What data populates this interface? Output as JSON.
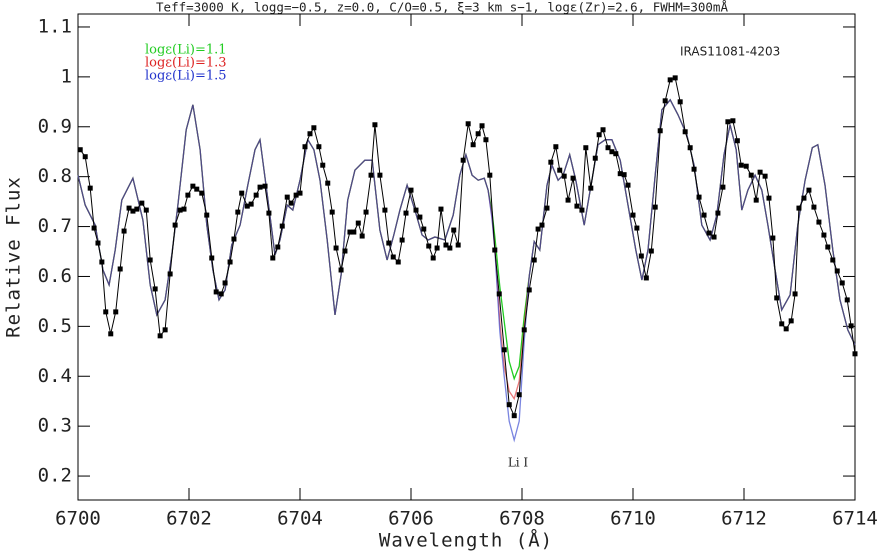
{
  "chart_data": {
    "type": "line",
    "title": "Teff=3000 K, logg=−0.5, z=0.0, C/O=0.5, ξ=3 km s−1, logε(Zr)=2.6, FWHM=300mÅ",
    "x_label": "Wavelength (Å)",
    "y_label": "Relative Flux",
    "annotations": [
      "IRAS11081-4203",
      "Li I"
    ],
    "xlim": [
      6700,
      6714
    ],
    "ylim": [
      0.152,
      1.126
    ],
    "xticks": [
      6700,
      6702,
      6704,
      6706,
      6708,
      6710,
      6712,
      6714
    ],
    "yticks": [
      0.2,
      0.3,
      0.4,
      0.5,
      0.6,
      0.7,
      0.8,
      0.9,
      1,
      1.1
    ],
    "observed": {
      "color": "#000000",
      "marker": "square",
      "x": [
        6700.04,
        6700.13,
        6700.22,
        6700.29,
        6700.36,
        6700.43,
        6700.5,
        6700.59,
        6700.68,
        6700.76,
        6700.83,
        6700.92,
        6700.99,
        6701.06,
        6701.15,
        6701.23,
        6701.3,
        6701.39,
        6701.48,
        6701.57,
        6701.66,
        6701.75,
        6701.84,
        6701.91,
        6701.98,
        6702.07,
        6702.14,
        6702.23,
        6702.32,
        6702.41,
        6702.49,
        6702.58,
        6702.65,
        6702.74,
        6702.81,
        6702.88,
        6702.95,
        6703.05,
        6703.12,
        6703.21,
        6703.28,
        6703.37,
        6703.44,
        6703.51,
        6703.6,
        6703.68,
        6703.77,
        6703.84,
        6703.93,
        6704.0,
        6704.09,
        6704.18,
        6704.25,
        6704.34,
        6704.41,
        6704.5,
        6704.58,
        6704.65,
        6704.74,
        6704.81,
        6704.9,
        6704.97,
        6705.05,
        6705.12,
        6705.19,
        6705.28,
        6705.35,
        6705.44,
        6705.53,
        6705.6,
        6705.68,
        6705.77,
        6705.84,
        6705.91,
        6706.0,
        6706.09,
        6706.16,
        6706.23,
        6706.32,
        6706.4,
        6706.47,
        6706.54,
        6706.63,
        6706.7,
        6706.77,
        6706.85,
        6706.94,
        6707.03,
        6707.12,
        6707.21,
        6707.28,
        6707.35,
        6707.42,
        6707.51,
        6707.59,
        6707.68,
        6707.77,
        6707.86,
        6707.95,
        6708.04,
        6708.13,
        6708.22,
        6708.29,
        6708.36,
        6708.45,
        6708.52,
        6708.61,
        6708.68,
        6708.76,
        6708.83,
        6708.92,
        6708.99,
        6709.08,
        6709.15,
        6709.24,
        6709.32,
        6709.39,
        6709.46,
        6709.55,
        6709.62,
        6709.69,
        6709.77,
        6709.84,
        6709.91,
        6710.0,
        6710.07,
        6710.15,
        6710.24,
        6710.33,
        6710.4,
        6710.49,
        6710.58,
        6710.67,
        6710.76,
        6710.85,
        6710.94,
        6711.03,
        6711.1,
        6711.19,
        6711.28,
        6711.37,
        6711.46,
        6711.53,
        6711.62,
        6711.71,
        6711.8,
        6711.88,
        6711.95,
        6712.04,
        6712.13,
        6712.22,
        6712.29,
        6712.38,
        6712.45,
        6712.52,
        6712.59,
        6712.68,
        6712.76,
        6712.85,
        6712.92,
        6712.99,
        6713.08,
        6713.17,
        6713.26,
        6713.35,
        6713.44,
        6713.51,
        6713.6,
        6713.68,
        6713.77,
        6713.86,
        6713.93,
        6714.0
      ],
      "values": [
        0.854,
        0.84,
        0.777,
        0.697,
        0.667,
        0.629,
        0.529,
        0.485,
        0.529,
        0.615,
        0.691,
        0.737,
        0.731,
        0.735,
        0.747,
        0.733,
        0.633,
        0.575,
        0.481,
        0.493,
        0.605,
        0.703,
        0.733,
        0.735,
        0.763,
        0.781,
        0.775,
        0.767,
        0.723,
        0.637,
        0.569,
        0.565,
        0.587,
        0.629,
        0.675,
        0.729,
        0.767,
        0.741,
        0.745,
        0.763,
        0.779,
        0.781,
        0.727,
        0.637,
        0.659,
        0.701,
        0.759,
        0.747,
        0.763,
        0.767,
        0.86,
        0.886,
        0.898,
        0.86,
        0.823,
        0.787,
        0.729,
        0.657,
        0.613,
        0.651,
        0.689,
        0.689,
        0.707,
        0.681,
        0.729,
        0.803,
        0.904,
        0.803,
        0.733,
        0.667,
        0.639,
        0.629,
        0.673,
        0.727,
        0.773,
        0.733,
        0.719,
        0.695,
        0.661,
        0.637,
        0.657,
        0.735,
        0.663,
        0.657,
        0.693,
        0.663,
        0.833,
        0.906,
        0.864,
        0.886,
        0.902,
        0.874,
        0.803,
        0.653,
        0.565,
        0.453,
        0.343,
        0.321,
        0.363,
        0.493,
        0.573,
        0.633,
        0.695,
        0.703,
        0.737,
        0.829,
        0.86,
        0.813,
        0.801,
        0.753,
        0.797,
        0.741,
        0.733,
        0.858,
        0.777,
        0.837,
        0.884,
        0.894,
        0.858,
        0.85,
        0.846,
        0.806,
        0.804,
        0.783,
        0.723,
        0.697,
        0.641,
        0.597,
        0.651,
        0.739,
        0.892,
        0.952,
        0.994,
        0.998,
        0.95,
        0.89,
        0.858,
        0.815,
        0.759,
        0.723,
        0.687,
        0.679,
        0.727,
        0.779,
        0.91,
        0.912,
        0.872,
        0.823,
        0.821,
        0.803,
        0.753,
        0.809,
        0.801,
        0.757,
        0.677,
        0.557,
        0.505,
        0.495,
        0.511,
        0.565,
        0.737,
        0.757,
        0.773,
        0.739,
        0.709,
        0.683,
        0.659,
        0.633,
        0.611,
        0.587,
        0.553,
        0.501,
        0.445
      ]
    },
    "model_x": [
      6700.0,
      6700.13,
      6700.31,
      6700.45,
      6700.56,
      6700.67,
      6700.79,
      6700.99,
      6701.17,
      6701.3,
      6701.42,
      6701.57,
      6701.69,
      6701.8,
      6701.95,
      6702.07,
      6702.2,
      6702.32,
      6702.43,
      6702.54,
      6702.65,
      6702.77,
      6702.92,
      6703.06,
      6703.19,
      6703.28,
      6703.41,
      6703.55,
      6703.64,
      6703.77,
      6703.87,
      6704.0,
      6704.14,
      6704.25,
      6704.36,
      6704.49,
      6704.63,
      6704.74,
      6704.86,
      6704.99,
      6705.17,
      6705.3,
      6705.44,
      6705.57,
      6705.69,
      6705.8,
      6705.93,
      6706.07,
      6706.2,
      6706.31,
      6706.43,
      6706.61,
      6706.76,
      6706.88,
      6706.99,
      6707.1,
      6707.21,
      6707.32,
      6707.39,
      6707.46,
      6707.51,
      6707.6,
      6707.68,
      6707.77,
      6707.86,
      6707.95,
      6708.04,
      6708.13,
      6708.22,
      6708.32,
      6708.45,
      6708.54,
      6708.65,
      6708.74,
      6708.86,
      6708.97,
      6709.12,
      6709.26,
      6709.37,
      6709.5,
      6709.62,
      6709.77,
      6709.91,
      6710.05,
      6710.16,
      6710.27,
      6710.4,
      6710.52,
      6710.67,
      6710.81,
      6710.97,
      6711.1,
      6711.24,
      6711.39,
      6711.51,
      6711.64,
      6711.75,
      6711.86,
      6711.96,
      6712.07,
      6712.2,
      6712.32,
      6712.43,
      6712.56,
      6712.68,
      6712.83,
      6712.97,
      6713.1,
      6713.23,
      6713.33,
      6713.46,
      6713.6,
      6713.73,
      6713.87,
      6714.0
    ],
    "series": [
      {
        "name": "logε(Li)=1.1",
        "color": "#22cc22",
        "values": [
          0.803,
          0.743,
          0.703,
          0.613,
          0.583,
          0.653,
          0.753,
          0.797,
          0.713,
          0.583,
          0.523,
          0.553,
          0.643,
          0.743,
          0.894,
          0.944,
          0.854,
          0.703,
          0.613,
          0.553,
          0.573,
          0.663,
          0.703,
          0.783,
          0.854,
          0.874,
          0.763,
          0.643,
          0.673,
          0.743,
          0.733,
          0.793,
          0.874,
          0.854,
          0.793,
          0.673,
          0.523,
          0.603,
          0.753,
          0.813,
          0.833,
          0.833,
          0.693,
          0.633,
          0.683,
          0.733,
          0.783,
          0.733,
          0.683,
          0.673,
          0.679,
          0.673,
          0.723,
          0.803,
          0.844,
          0.803,
          0.793,
          0.797,
          0.773,
          0.73,
          0.68,
          0.58,
          0.51,
          0.43,
          0.395,
          0.42,
          0.52,
          0.6,
          0.67,
          0.653,
          0.783,
          0.823,
          0.793,
          0.803,
          0.844,
          0.793,
          0.703,
          0.793,
          0.864,
          0.874,
          0.874,
          0.833,
          0.743,
          0.653,
          0.593,
          0.653,
          0.803,
          0.934,
          0.954,
          0.924,
          0.884,
          0.823,
          0.703,
          0.673,
          0.723,
          0.844,
          0.904,
          0.854,
          0.733,
          0.773,
          0.803,
          0.773,
          0.703,
          0.613,
          0.533,
          0.563,
          0.703,
          0.793,
          0.858,
          0.864,
          0.783,
          0.653,
          0.553,
          0.493,
          0.463
        ]
      },
      {
        "name": "logε(Li)=1.3",
        "color": "#dd2222",
        "values": [
          0.803,
          0.743,
          0.703,
          0.613,
          0.583,
          0.653,
          0.753,
          0.797,
          0.713,
          0.583,
          0.523,
          0.553,
          0.643,
          0.743,
          0.894,
          0.944,
          0.854,
          0.703,
          0.613,
          0.553,
          0.573,
          0.663,
          0.703,
          0.783,
          0.854,
          0.874,
          0.763,
          0.643,
          0.673,
          0.743,
          0.733,
          0.793,
          0.874,
          0.854,
          0.793,
          0.673,
          0.523,
          0.603,
          0.753,
          0.813,
          0.833,
          0.833,
          0.693,
          0.633,
          0.683,
          0.733,
          0.783,
          0.733,
          0.683,
          0.673,
          0.679,
          0.673,
          0.723,
          0.803,
          0.844,
          0.803,
          0.793,
          0.797,
          0.773,
          0.72,
          0.66,
          0.51,
          0.42,
          0.37,
          0.355,
          0.39,
          0.5,
          0.6,
          0.67,
          0.653,
          0.783,
          0.823,
          0.793,
          0.803,
          0.844,
          0.793,
          0.703,
          0.793,
          0.864,
          0.874,
          0.874,
          0.833,
          0.743,
          0.653,
          0.593,
          0.653,
          0.803,
          0.934,
          0.954,
          0.924,
          0.884,
          0.823,
          0.703,
          0.673,
          0.723,
          0.844,
          0.904,
          0.854,
          0.733,
          0.773,
          0.803,
          0.773,
          0.703,
          0.613,
          0.533,
          0.563,
          0.703,
          0.793,
          0.858,
          0.864,
          0.783,
          0.653,
          0.553,
          0.493,
          0.463
        ]
      },
      {
        "name": "logε(Li)=1.5",
        "color": "#2233cc",
        "values": [
          0.803,
          0.743,
          0.703,
          0.613,
          0.583,
          0.653,
          0.753,
          0.797,
          0.713,
          0.583,
          0.523,
          0.553,
          0.643,
          0.743,
          0.894,
          0.944,
          0.854,
          0.703,
          0.613,
          0.553,
          0.573,
          0.663,
          0.703,
          0.783,
          0.854,
          0.874,
          0.763,
          0.643,
          0.673,
          0.743,
          0.733,
          0.793,
          0.874,
          0.854,
          0.793,
          0.673,
          0.523,
          0.603,
          0.753,
          0.813,
          0.833,
          0.833,
          0.693,
          0.633,
          0.683,
          0.733,
          0.783,
          0.733,
          0.683,
          0.673,
          0.679,
          0.673,
          0.723,
          0.803,
          0.844,
          0.803,
          0.793,
          0.797,
          0.773,
          0.715,
          0.655,
          0.49,
          0.4,
          0.31,
          0.272,
          0.31,
          0.47,
          0.6,
          0.67,
          0.653,
          0.783,
          0.823,
          0.793,
          0.803,
          0.844,
          0.793,
          0.703,
          0.793,
          0.864,
          0.874,
          0.874,
          0.833,
          0.743,
          0.653,
          0.593,
          0.653,
          0.803,
          0.934,
          0.954,
          0.924,
          0.884,
          0.823,
          0.703,
          0.673,
          0.723,
          0.844,
          0.904,
          0.854,
          0.733,
          0.773,
          0.803,
          0.773,
          0.703,
          0.613,
          0.533,
          0.563,
          0.703,
          0.793,
          0.858,
          0.864,
          0.783,
          0.653,
          0.553,
          0.493,
          0.463
        ]
      }
    ]
  }
}
